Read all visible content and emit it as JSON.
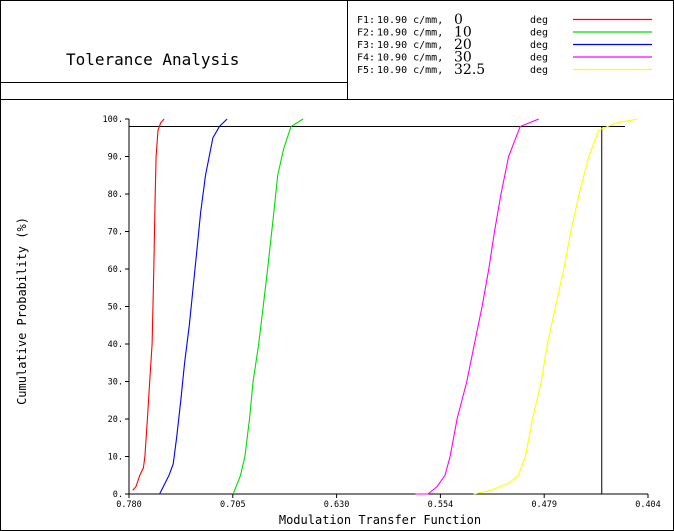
{
  "header": {
    "title": "Tolerance Analysis"
  },
  "legend": [
    {
      "key": "F1:",
      "freq": "10.90 c/mm,",
      "angle": "0",
      "unit": "deg",
      "color": "#ff0000"
    },
    {
      "key": "F2:",
      "freq": "10.90 c/mm,",
      "angle": "10",
      "unit": "deg",
      "color": "#00dd00"
    },
    {
      "key": "F3:",
      "freq": "10.90 c/mm,",
      "angle": "20",
      "unit": "deg",
      "color": "#0000ff"
    },
    {
      "key": "F4:",
      "freq": "10.90 c/mm,",
      "angle": "30",
      "unit": "deg",
      "color": "#ff00ff"
    },
    {
      "key": "F5:",
      "freq": "10.90 c/mm,",
      "angle": "32.5",
      "unit": "deg",
      "color": "#ffff00"
    }
  ],
  "chart_data": {
    "type": "line",
    "xlabel": "Modulation Transfer Function",
    "ylabel": "Cumulative Probability (%)",
    "xlim": [
      0.78,
      0.404
    ],
    "ylim": [
      0,
      100
    ],
    "x_tick_labels": [
      "0.780",
      "0.705",
      "0.630",
      "0.554",
      "0.479",
      "0.404"
    ],
    "y_tick_labels": [
      "0.",
      "10.",
      "20.",
      "30.",
      "40.",
      "50.",
      "60.",
      "70.",
      "80.",
      "90.",
      "100."
    ],
    "reference_lines": {
      "horizontal_percent": 98,
      "vertical_mtf": 0.4375
    },
    "series": [
      {
        "name": "F1",
        "color": "#ff0000",
        "x": [
          0.7773,
          0.7749,
          0.7722,
          0.7696,
          0.7685,
          0.7667,
          0.765,
          0.7633,
          0.762,
          0.761,
          0.7604,
          0.759,
          0.757,
          0.7546
        ],
        "y": [
          1,
          2,
          5,
          7,
          10,
          20,
          30,
          40,
          60,
          80,
          90,
          97,
          99,
          100
        ]
      },
      {
        "name": "F3",
        "color": "#0000ff",
        "x": [
          0.7578,
          0.7551,
          0.751,
          0.748,
          0.7455,
          0.7425,
          0.7397,
          0.7363,
          0.7322,
          0.7281,
          0.7246,
          0.7192,
          0.7145,
          0.7089
        ],
        "y": [
          0,
          2,
          5,
          8,
          15,
          25,
          35,
          45,
          60,
          75,
          85,
          95,
          98,
          100
        ]
      },
      {
        "name": "F2",
        "color": "#00dd00",
        "x": [
          0.7045,
          0.6992,
          0.696,
          0.6927,
          0.6901,
          0.686,
          0.6828,
          0.6796,
          0.6751,
          0.6723,
          0.668,
          0.6626,
          0.6539
        ],
        "y": [
          0,
          5,
          10,
          20,
          30,
          40,
          50,
          60,
          75,
          85,
          92,
          98,
          100
        ]
      },
      {
        "name": "F4",
        "color": "#ff00ff",
        "x": [
          0.5725,
          0.5634,
          0.5568,
          0.5511,
          0.5474,
          0.5423,
          0.5353,
          0.5298,
          0.5242,
          0.5193,
          0.5152,
          0.5105,
          0.505,
          0.4966,
          0.4832
        ],
        "y": [
          0,
          0,
          2,
          5,
          10,
          20,
          30,
          40,
          50,
          60,
          70,
          80,
          90,
          98,
          100
        ]
      },
      {
        "name": "F5",
        "color": "#ffff00",
        "x": [
          0.5303,
          0.5176,
          0.5045,
          0.4979,
          0.4928,
          0.4877,
          0.4814,
          0.4769,
          0.471,
          0.465,
          0.4599,
          0.4539,
          0.4469,
          0.4398,
          0.4268,
          0.4116
        ],
        "y": [
          0,
          1,
          3,
          5,
          10,
          20,
          30,
          40,
          50,
          60,
          70,
          80,
          90,
          97,
          99,
          100
        ]
      }
    ]
  }
}
